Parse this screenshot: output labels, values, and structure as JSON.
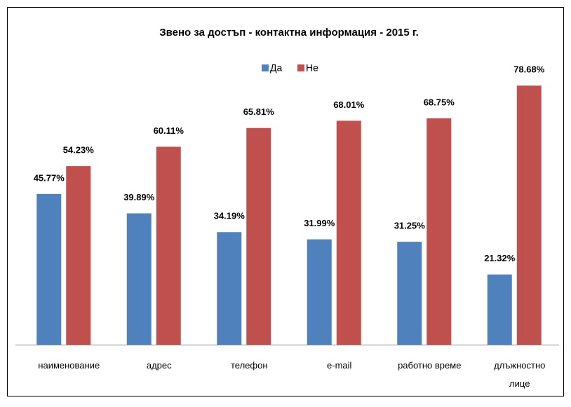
{
  "chart_data": {
    "type": "bar",
    "title": "Звено за достъп - контактна информация - 2015 г.",
    "categories": [
      "наименование",
      "адрес",
      "телефон",
      "e-mail",
      "работно време",
      "длъжностно лице"
    ],
    "series": [
      {
        "name": "Да",
        "color": "#4f81bd",
        "values": [
          45.77,
          39.89,
          34.19,
          31.99,
          31.25,
          21.32
        ],
        "value_labels": [
          "45.77%",
          "39.89%",
          "34.19%",
          "31.99%",
          "31.25%",
          "21.32%"
        ]
      },
      {
        "name": "Не",
        "color": "#c0504d",
        "values": [
          54.23,
          60.11,
          65.81,
          68.01,
          68.75,
          78.68
        ],
        "value_labels": [
          "54.23%",
          "60.11%",
          "65.81%",
          "68.01%",
          "68.75%",
          "78.68%"
        ]
      }
    ],
    "ylim": [
      0,
      90
    ],
    "legend": "top"
  }
}
